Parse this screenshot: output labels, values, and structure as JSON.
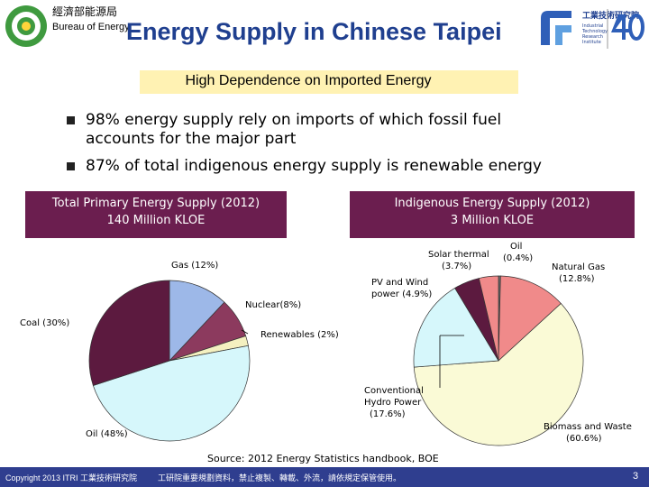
{
  "header": {
    "org_cn": "經濟部能源局",
    "org_en": "Bureau of Energy",
    "title": "Energy Supply in Chinese Taipei",
    "subtitle": "High Dependence on Imported Energy",
    "itri_cn": "工業技術研究院",
    "itri_en": "Industrial Technology Research Institute"
  },
  "bullets": [
    {
      "line1": "98% energy supply rely on imports of which fossil fuel",
      "line2": "accounts for the major part"
    },
    {
      "line1": "87% of total indigenous energy supply is renewable energy",
      "line2": ""
    }
  ],
  "panels": {
    "left": {
      "title": "Total Primary Energy Supply (2012)",
      "subtitle": "140 Million KLOE"
    },
    "right": {
      "title": "Indigenous Energy Supply (2012)",
      "subtitle": "3 Million KLOE"
    }
  },
  "colors": {
    "panel": "#6b1e4f",
    "title": "#1f3f8f",
    "footer": "#2f3e8f"
  },
  "chart_data": [
    {
      "type": "pie",
      "title": "Total Primary Energy Supply (2012)",
      "subtitle": "140 Million KLOE",
      "slices": [
        {
          "label": "Gas (12%)",
          "value": 12,
          "color": "#9db8e8"
        },
        {
          "label": "Nuclear(8%)",
          "value": 8,
          "color": "#8c3a5e"
        },
        {
          "label": "Renewables (2%)",
          "value": 2,
          "color": "#f4f0c0"
        },
        {
          "label": "Oil (48%)",
          "value": 48,
          "color": "#d6f7fb"
        },
        {
          "label": "Coal (30%)",
          "value": 30,
          "color": "#5c1a3f"
        }
      ]
    },
    {
      "type": "pie",
      "title": "Indigenous Energy Supply (2012)",
      "subtitle": "3 Million KLOE",
      "slices": [
        {
          "label": "Oil (0.4%)",
          "value": 0.4,
          "color": "#6b6b6b"
        },
        {
          "label": "Natural Gas (12.8%)",
          "value": 12.8,
          "color": "#f08a8a"
        },
        {
          "label": "Biomass and Waste (60.6%)",
          "value": 60.6,
          "color": "#fafad6"
        },
        {
          "label": "Conventional Hydro Power (17.6%)",
          "value": 17.6,
          "color": "#d6f7fb"
        },
        {
          "label": "PV and Wind power (4.9%)",
          "value": 4.9,
          "color": "#5c1a3f"
        },
        {
          "label": "Solar thermal (3.7%)",
          "value": 3.7,
          "color": "#f08a8a"
        }
      ]
    }
  ],
  "source": "Source: 2012 Energy Statistics handbook, BOE",
  "footer": {
    "copyright": "Copyright 2013 ITRI 工業技術研究院",
    "note": "工研院重要規劃資料，禁止複製、轉載、外流，請依規定保管使用。",
    "page": "3"
  }
}
